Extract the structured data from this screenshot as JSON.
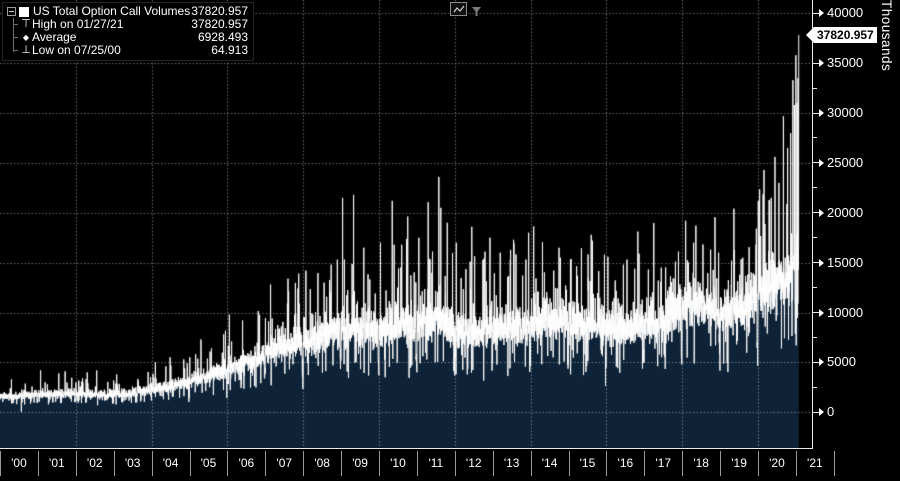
{
  "legend": {
    "series_label": "US Total Option Call Volumes",
    "series_value": "37820.957",
    "swatch_color": "#ffffff",
    "stats": [
      {
        "marker": "high-marker",
        "glyph": "⊤",
        "label": "High on 01/27/21",
        "value": "37820.957"
      },
      {
        "marker": "average-marker",
        "glyph": "◆",
        "label": "Average",
        "value": "6928.493"
      },
      {
        "marker": "low-marker",
        "glyph": "⊥",
        "label": "Low on 07/25/00",
        "value": "64.913"
      }
    ]
  },
  "y_axis": {
    "unit_label": "Thousands",
    "current_value_tag": "37820.957",
    "major_ticks": [
      {
        "value": 40000,
        "label": "40000"
      },
      {
        "value": 35000,
        "label": "35000"
      },
      {
        "value": 30000,
        "label": "30000"
      },
      {
        "value": 25000,
        "label": "25000"
      },
      {
        "value": 20000,
        "label": "20000"
      },
      {
        "value": 15000,
        "label": "15000"
      },
      {
        "value": 10000,
        "label": "10000"
      },
      {
        "value": 5000,
        "label": "5000"
      },
      {
        "value": 0,
        "label": "0"
      }
    ],
    "minor_step": 2500
  },
  "x_axis": {
    "year_labels": [
      "'00",
      "'01",
      "'02",
      "'03",
      "'04",
      "'05",
      "'06",
      "'07",
      "'08",
      "'09",
      "'10",
      "'11",
      "'12",
      "'13",
      "'14",
      "'15",
      "'16",
      "'17",
      "'18",
      "'19",
      "'20",
      "'21"
    ]
  },
  "chart_data": {
    "type": "area",
    "title": "US Total Option Call Volumes",
    "ylabel": "Thousands",
    "xlim": [
      2000.0,
      2021.074
    ],
    "ylim": [
      0,
      40000
    ],
    "y_major_step": 5000,
    "grid_vertical_years": [
      2002,
      2004,
      2006,
      2008,
      2010,
      2012,
      2014,
      2016,
      2018,
      2020
    ],
    "last_point": {
      "date": "01/27/21",
      "value": 37820.957
    },
    "stats": {
      "high": {
        "date": "01/27/21",
        "value": 37820.957
      },
      "average": 6928.493,
      "low": {
        "date": "07/25/00",
        "value": 64.913
      }
    },
    "envelope": [
      [
        2000.0,
        1600
      ],
      [
        2000.5,
        1650
      ],
      [
        2001.0,
        1750
      ],
      [
        2001.5,
        1800
      ],
      [
        2002.0,
        1850
      ],
      [
        2002.5,
        1800
      ],
      [
        2003.0,
        1780
      ],
      [
        2003.5,
        1900
      ],
      [
        2004.0,
        2250
      ],
      [
        2004.5,
        2600
      ],
      [
        2005.0,
        3100
      ],
      [
        2005.5,
        3700
      ],
      [
        2006.0,
        4400
      ],
      [
        2006.5,
        5000
      ],
      [
        2007.0,
        5800
      ],
      [
        2007.5,
        6600
      ],
      [
        2008.0,
        7200
      ],
      [
        2008.5,
        7700
      ],
      [
        2009.0,
        8200
      ],
      [
        2009.5,
        8200
      ],
      [
        2010.0,
        8000
      ],
      [
        2010.5,
        8800
      ],
      [
        2011.0,
        8800
      ],
      [
        2011.5,
        9400
      ],
      [
        2012.0,
        8500
      ],
      [
        2012.5,
        8100
      ],
      [
        2013.0,
        8300
      ],
      [
        2013.5,
        8500
      ],
      [
        2014.0,
        9000
      ],
      [
        2014.5,
        9200
      ],
      [
        2015.0,
        9100
      ],
      [
        2015.5,
        9000
      ],
      [
        2016.0,
        8500
      ],
      [
        2016.5,
        8400
      ],
      [
        2017.0,
        8700
      ],
      [
        2017.5,
        9000
      ],
      [
        2018.0,
        10500
      ],
      [
        2018.5,
        10700
      ],
      [
        2019.0,
        9900
      ],
      [
        2019.5,
        10100
      ],
      [
        2020.0,
        11700
      ],
      [
        2020.25,
        12700
      ],
      [
        2020.5,
        13000
      ],
      [
        2020.75,
        13600
      ],
      [
        2021.0,
        14800
      ],
      [
        2021.074,
        15500
      ]
    ],
    "spikes": [
      [
        2000.564,
        65
      ],
      [
        2000.3,
        3300
      ],
      [
        2001.07,
        4200
      ],
      [
        2001.55,
        3900
      ],
      [
        2001.72,
        4100
      ],
      [
        2002.3,
        4000
      ],
      [
        2002.55,
        4200
      ],
      [
        2003.08,
        3800
      ],
      [
        2004.1,
        5000
      ],
      [
        2004.85,
        5300
      ],
      [
        2005.3,
        7300
      ],
      [
        2005.9,
        7800
      ],
      [
        2006.05,
        9800
      ],
      [
        2006.4,
        9200
      ],
      [
        2007.14,
        12800
      ],
      [
        2007.6,
        13400
      ],
      [
        2007.88,
        13900
      ],
      [
        2008.07,
        14200
      ],
      [
        2008.55,
        13000
      ],
      [
        2008.74,
        14800
      ],
      [
        2008.9,
        15300
      ],
      [
        2009.04,
        21500
      ],
      [
        2009.33,
        21800
      ],
      [
        2009.6,
        16500
      ],
      [
        2010.04,
        17000
      ],
      [
        2010.35,
        21200
      ],
      [
        2010.6,
        16800
      ],
      [
        2011.05,
        17500
      ],
      [
        2011.58,
        23600
      ],
      [
        2011.63,
        20500
      ],
      [
        2011.8,
        19000
      ],
      [
        2012.04,
        17000
      ],
      [
        2012.45,
        18600
      ],
      [
        2012.93,
        17500
      ],
      [
        2013.2,
        16000
      ],
      [
        2013.55,
        17300
      ],
      [
        2013.95,
        18000
      ],
      [
        2014.08,
        18300
      ],
      [
        2014.75,
        16500
      ],
      [
        2015.63,
        17200
      ],
      [
        2015.95,
        15800
      ],
      [
        2016.04,
        15600
      ],
      [
        2016.45,
        14800
      ],
      [
        2016.86,
        15900
      ],
      [
        2017.45,
        14500
      ],
      [
        2017.9,
        16100
      ],
      [
        2018.09,
        19200
      ],
      [
        2018.3,
        17000
      ],
      [
        2018.75,
        16300
      ],
      [
        2018.96,
        16000
      ],
      [
        2019.3,
        15200
      ],
      [
        2019.6,
        15500
      ],
      [
        2019.95,
        16800
      ],
      [
        2020.16,
        24300
      ],
      [
        2020.35,
        21500
      ],
      [
        2020.45,
        25600
      ],
      [
        2020.55,
        23000
      ],
      [
        2020.67,
        29700
      ],
      [
        2020.78,
        26500
      ],
      [
        2020.86,
        28000
      ],
      [
        2020.92,
        33300
      ],
      [
        2020.96,
        30800
      ],
      [
        2021.0,
        35800
      ],
      [
        2021.03,
        31000
      ],
      [
        2021.055,
        33500
      ]
    ],
    "noise": {
      "seed": 11,
      "points_per_year": 252,
      "jitter": 0.115,
      "up_prob": 0.045,
      "up_mult": [
        1.2,
        1.8
      ],
      "down_prob": 0.04,
      "down_mult": [
        0.45,
        0.75
      ],
      "year_end_dip": 0.5
    },
    "colors": {
      "line": "#ffffff",
      "fill": "#0e2337",
      "grid": "rgba(195,205,216,0.5)"
    }
  }
}
